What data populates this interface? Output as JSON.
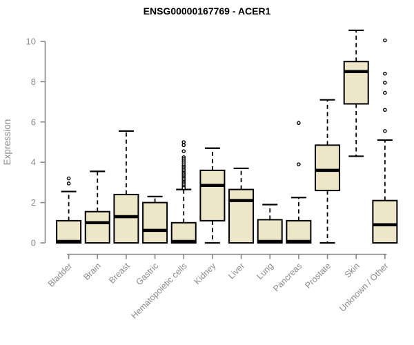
{
  "chart_data": {
    "type": "boxplot",
    "title": "ENSG00000167769 - ACER1",
    "ylabel": "Expression",
    "xlabel": "",
    "yticks": [
      0,
      2,
      4,
      6,
      8,
      10
    ],
    "ylim": [
      -0.6,
      10.8
    ],
    "grid": false,
    "legend": "none",
    "categories": [
      "Bladder",
      "Brain",
      "Breast",
      "Gastric",
      "Hematopoietic cells",
      "Kidney",
      "Liver",
      "Lung",
      "Pancreas",
      "Prostate",
      "Skin",
      "Unknown / Other"
    ],
    "series": [
      {
        "name": "Bladder",
        "whisker_low": null,
        "q1": 0,
        "median": 0.07,
        "q3": 1.1,
        "whisker_high": 2.55,
        "outliers": [
          2.95,
          3.2
        ]
      },
      {
        "name": "Brain",
        "whisker_low": null,
        "q1": 0,
        "median": 1.0,
        "q3": 1.55,
        "whisker_high": 3.55,
        "outliers": []
      },
      {
        "name": "Breast",
        "whisker_low": null,
        "q1": 0,
        "median": 1.3,
        "q3": 2.4,
        "whisker_high": 5.55,
        "outliers": []
      },
      {
        "name": "Gastric",
        "whisker_low": null,
        "q1": 0,
        "median": 0.62,
        "q3": 2.0,
        "whisker_high": 2.3,
        "outliers": []
      },
      {
        "name": "Hematopoietic cells",
        "whisker_low": null,
        "q1": 0,
        "median": 0.07,
        "q3": 1.0,
        "whisker_high": 2.65,
        "outliers": [
          5.0,
          4.85,
          4.55,
          4.25,
          4.15,
          4.05,
          3.95,
          3.85,
          3.78,
          3.7,
          3.62,
          3.55,
          3.47,
          3.4,
          3.32,
          3.25,
          3.17,
          3.1,
          3.02,
          2.95,
          2.87,
          2.8,
          2.72
        ]
      },
      {
        "name": "Kidney",
        "whisker_low": 0,
        "q1": 1.1,
        "median": 2.85,
        "q3": 3.6,
        "whisker_high": 4.7,
        "outliers": []
      },
      {
        "name": "Liver",
        "whisker_low": null,
        "q1": 0,
        "median": 2.1,
        "q3": 2.65,
        "whisker_high": 3.7,
        "outliers": []
      },
      {
        "name": "Lung",
        "whisker_low": null,
        "q1": 0,
        "median": 0.07,
        "q3": 1.15,
        "whisker_high": 1.9,
        "outliers": []
      },
      {
        "name": "Pancreas",
        "whisker_low": null,
        "q1": 0,
        "median": 0.07,
        "q3": 1.1,
        "whisker_high": 2.25,
        "outliers": [
          3.9,
          5.95
        ]
      },
      {
        "name": "Prostate",
        "whisker_low": 0,
        "q1": 2.6,
        "median": 3.6,
        "q3": 4.85,
        "whisker_high": 7.1,
        "outliers": []
      },
      {
        "name": "Skin",
        "whisker_low": 4.3,
        "q1": 6.9,
        "median": 8.5,
        "q3": 9.0,
        "whisker_high": 10.55,
        "outliers": []
      },
      {
        "name": "Unknown / Other",
        "whisker_low": null,
        "q1": 0,
        "median": 0.9,
        "q3": 2.1,
        "whisker_high": 5.1,
        "outliers": [
          5.55,
          6.6,
          7.45,
          7.95,
          8.4,
          10.05
        ]
      }
    ]
  },
  "colors": {
    "box_fill": "#EDE6C8",
    "box_stroke": "#000000",
    "median": "#000000",
    "whisker": "#000000",
    "outlier_stroke": "#000000",
    "axis": "#888888",
    "tick_text": "#8A8A8A",
    "title_text": "#000000",
    "background": "#FFFFFF"
  }
}
